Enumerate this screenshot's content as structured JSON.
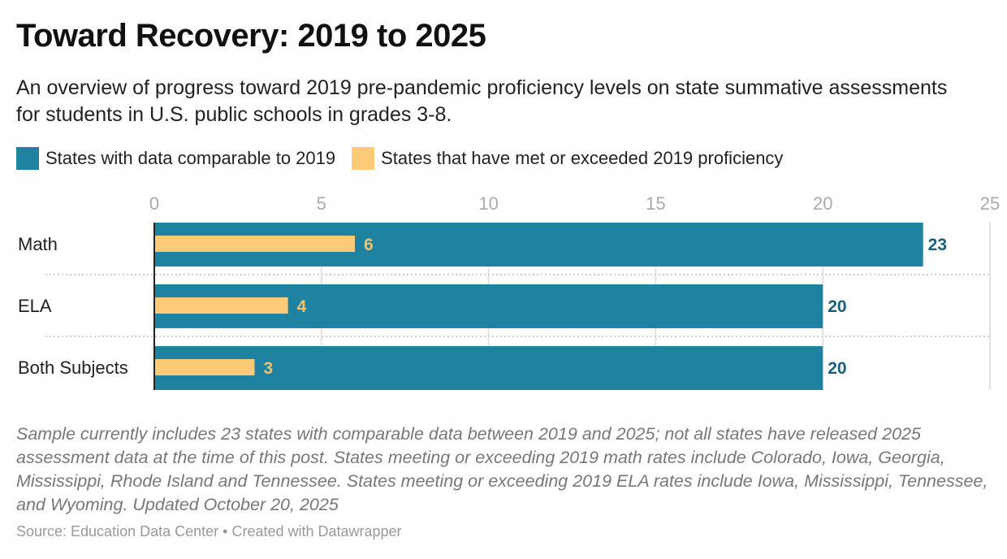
{
  "chart_data": {
    "type": "bar",
    "title": "Toward Recovery: 2019 to 2025",
    "subtitle": "An overview of progress toward 2019 pre-pandemic proficiency levels on state summative assessments for students in U.S. public schools in grades 3-8.",
    "categories": [
      "Math",
      "ELA",
      "Both Subjects"
    ],
    "series": [
      {
        "name": "States with data comparable to 2019",
        "color": "#1f82a1",
        "label_color": "#17607a",
        "values": [
          23,
          20,
          20
        ]
      },
      {
        "name": "States that have met or exceeded 2019 proficiency",
        "color": "#fdca78",
        "label_color": "#f6bf6a",
        "values": [
          6,
          4,
          3
        ]
      }
    ],
    "xlim": [
      0,
      25
    ],
    "xticks": [
      0,
      5,
      10,
      15,
      20,
      25
    ],
    "legend": "top-left",
    "grid": true,
    "notes": "Sample currently includes 23 states with comparable data between 2019 and 2025; not all states have released 2025 assessment data at the time of this post. States meeting or exceeding 2019 math rates include Colorado, Iowa, Georgia, Mississippi, Rhode Island and Tennessee. States meeting or exceeding 2019 ELA rates include Iowa, Mississippi, Tennessee, and Wyoming. Updated October 20, 2025",
    "source": "Source: Education Data Center • Created with Datawrapper"
  }
}
